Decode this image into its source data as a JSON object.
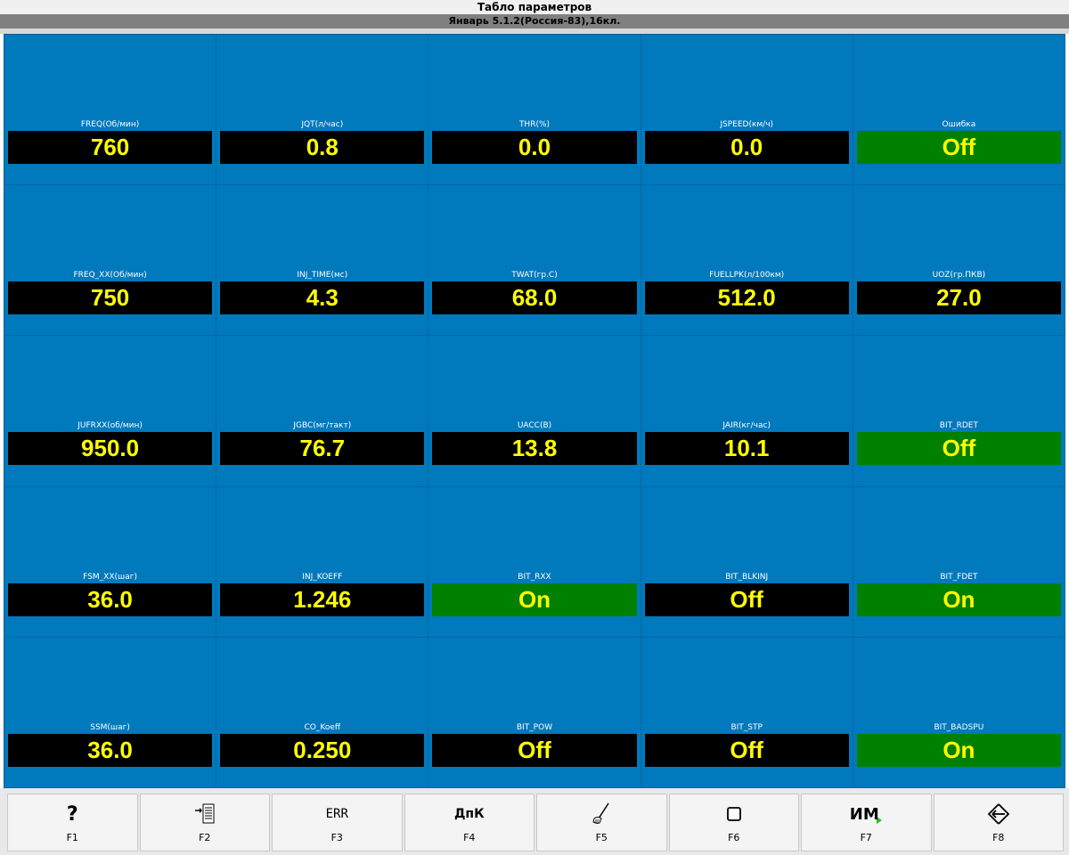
{
  "window": {
    "title": "Табло параметров",
    "subtitle": "Январь 5.1.2(Россия-83),16кл."
  },
  "parameters": [
    {
      "label": "FREQ(Об/мин)",
      "value": "760",
      "state": "normal"
    },
    {
      "label": "JQT(л/час)",
      "value": "0.8",
      "state": "normal"
    },
    {
      "label": "THR(%)",
      "value": "0.0",
      "state": "normal"
    },
    {
      "label": "JSPEED(км/ч)",
      "value": "0.0",
      "state": "normal"
    },
    {
      "label": "Ошибка",
      "value": "Off",
      "state": "ok"
    },
    {
      "label": "FREQ_XX(Об/мин)",
      "value": "750",
      "state": "normal"
    },
    {
      "label": "INJ_TIME(мс)",
      "value": "4.3",
      "state": "normal"
    },
    {
      "label": "TWAT(гр.С)",
      "value": "68.0",
      "state": "normal"
    },
    {
      "label": "FUELLPK(л/100км)",
      "value": "512.0",
      "state": "normal"
    },
    {
      "label": "UOZ(гр.ПКВ)",
      "value": "27.0",
      "state": "normal"
    },
    {
      "label": "JUFRXX(об/мин)",
      "value": "950.0",
      "state": "normal"
    },
    {
      "label": "JGBC(мг/такт)",
      "value": "76.7",
      "state": "normal"
    },
    {
      "label": "UACC(В)",
      "value": "13.8",
      "state": "normal"
    },
    {
      "label": "JAIR(кг/час)",
      "value": "10.1",
      "state": "normal"
    },
    {
      "label": "BIT_RDET",
      "value": "Off",
      "state": "ok"
    },
    {
      "label": "FSM_XX(шаг)",
      "value": "36.0",
      "state": "normal"
    },
    {
      "label": "INJ_KOEFF",
      "value": "1.246",
      "state": "normal"
    },
    {
      "label": "BIT_RXX",
      "value": "On",
      "state": "ok"
    },
    {
      "label": "BIT_BLKINJ",
      "value": "Off",
      "state": "normal"
    },
    {
      "label": "BIT_FDET",
      "value": "On",
      "state": "ok"
    },
    {
      "label": "SSM(шаг)",
      "value": "36.0",
      "state": "normal"
    },
    {
      "label": "CO_Koeff",
      "value": "0.250",
      "state": "normal"
    },
    {
      "label": "BIT_POW",
      "value": "Off",
      "state": "normal"
    },
    {
      "label": "BIT_STP",
      "value": "Off",
      "state": "normal"
    },
    {
      "label": "BIT_BADSPU",
      "value": "On",
      "state": "ok"
    }
  ],
  "toolbar": {
    "buttons": [
      {
        "key": "F1",
        "icon": "help-icon",
        "glyph": "?"
      },
      {
        "key": "F2",
        "icon": "import-list-icon",
        "glyph": ""
      },
      {
        "key": "F3",
        "icon": "errors-icon",
        "glyph": "ERR"
      },
      {
        "key": "F4",
        "icon": "dpk-icon",
        "glyph": "ДпК"
      },
      {
        "key": "F5",
        "icon": "tool-icon",
        "glyph": ""
      },
      {
        "key": "F6",
        "icon": "square-icon",
        "glyph": ""
      },
      {
        "key": "F7",
        "icon": "im-icon",
        "glyph": "ИМ"
      },
      {
        "key": "F8",
        "icon": "exit-icon",
        "glyph": ""
      }
    ]
  },
  "colors": {
    "panel_bg": "#0079bd",
    "value_bg": "#000000",
    "value_ok_bg": "#008000",
    "value_text": "#ffff00",
    "label_text": "#ffffff"
  }
}
